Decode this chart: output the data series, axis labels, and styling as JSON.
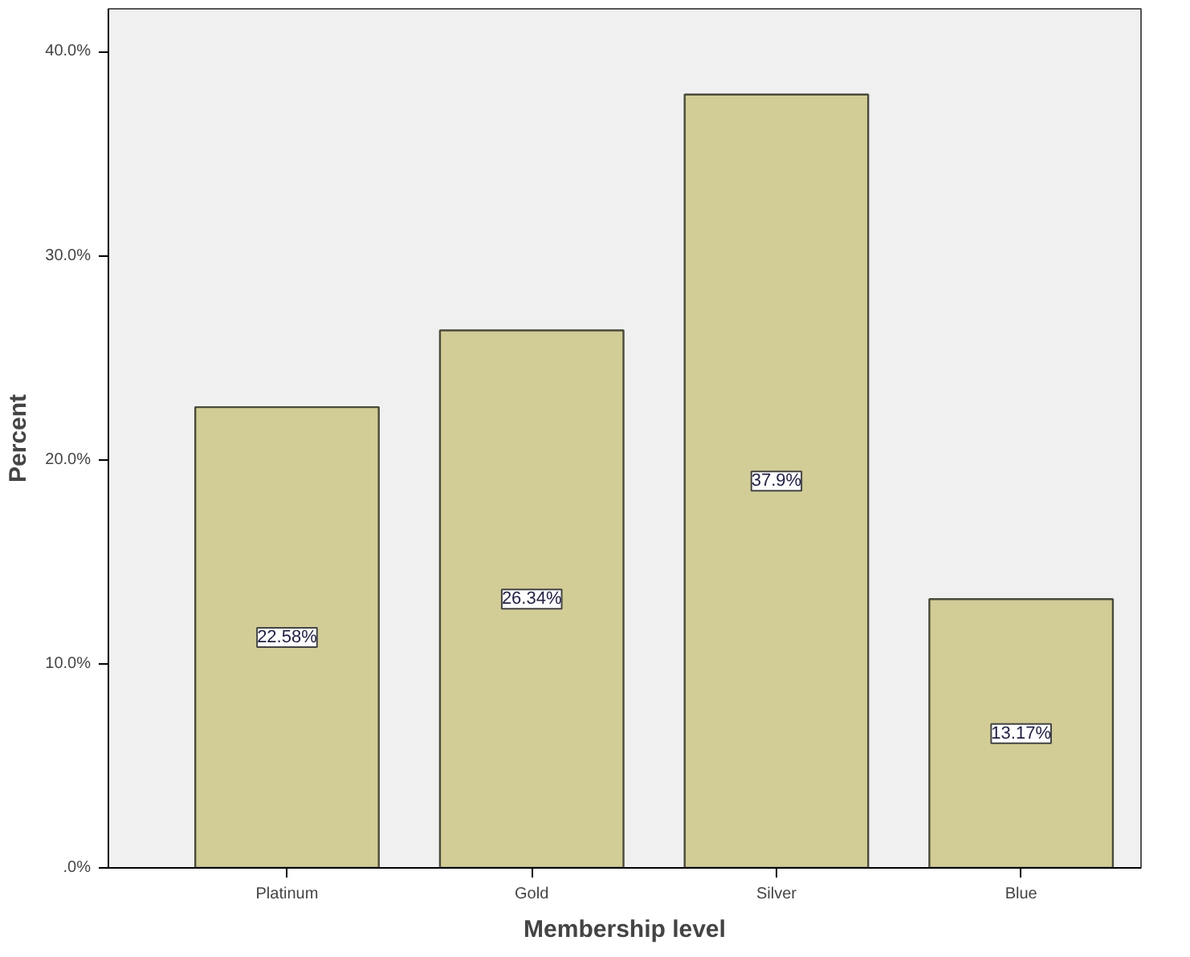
{
  "chart_data": {
    "type": "bar",
    "xlabel": "Membership level",
    "ylabel": "Percent",
    "categories": [
      "Platinum",
      "Gold",
      "Silver",
      "Blue"
    ],
    "values": [
      22.58,
      26.34,
      37.9,
      13.17
    ],
    "value_labels": [
      "22.58%",
      "26.34%",
      "37.9%",
      "13.17%"
    ],
    "color": "#d2cc96",
    "ylim": [
      0,
      42.1
    ],
    "yticks": [
      {
        "value": 0,
        "label": ".0%"
      },
      {
        "value": 10,
        "label": "10.0%"
      },
      {
        "value": 20,
        "label": "20.0%"
      },
      {
        "value": 30,
        "label": "30.0%"
      },
      {
        "value": 40,
        "label": "40.0%"
      }
    ],
    "grid": false
  }
}
